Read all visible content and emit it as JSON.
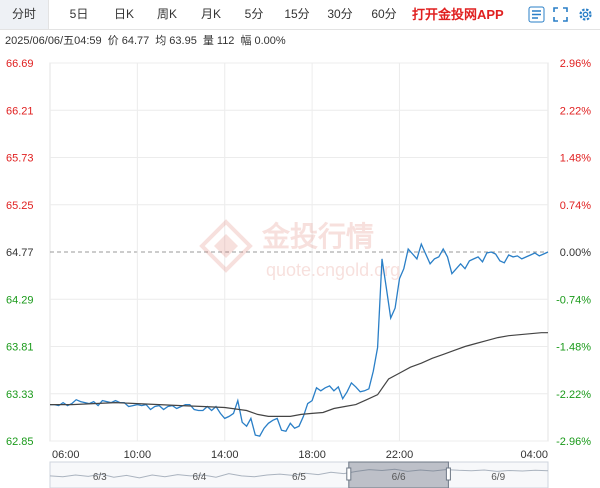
{
  "tabs": [
    {
      "label": "分时",
      "active": true
    },
    {
      "label": "5日",
      "active": false
    },
    {
      "label": "日K",
      "active": false
    },
    {
      "label": "周K",
      "active": false
    },
    {
      "label": "月K",
      "active": false
    },
    {
      "label": "5分",
      "active": false
    },
    {
      "label": "15分",
      "active": false
    },
    {
      "label": "30分",
      "active": false
    },
    {
      "label": "60分",
      "active": false
    }
  ],
  "promo_text": "打开金投网APP",
  "info": {
    "datetime": "2025/06/06/五04:59",
    "price_label": "价",
    "price": "64.77",
    "avg_label": "均",
    "avg": "63.95",
    "vol_label": "量",
    "vol": "112",
    "amp_label": "幅",
    "amp": "0.00%"
  },
  "watermark": {
    "title": "金投行情",
    "url": "quote.cngold.org"
  },
  "colors": {
    "up": "#e02020",
    "down": "#1a9a1a",
    "price_line": "#2a7fc7",
    "avg_line": "#444444",
    "ref_line": "#999999"
  },
  "chart_data": {
    "type": "line",
    "y_ticks_left": [
      "66.69",
      "66.21",
      "65.73",
      "65.25",
      "64.77",
      "64.29",
      "63.81",
      "63.33",
      "62.85"
    ],
    "y_ticks_right": [
      "2.96%",
      "2.22%",
      "1.48%",
      "0.74%",
      "0.00%",
      "-0.74%",
      "-1.48%",
      "-2.22%",
      "-2.96%"
    ],
    "ylim": [
      62.85,
      66.69
    ],
    "reference_price": 64.77,
    "x_ticks": [
      "06:00",
      "10:00",
      "14:00",
      "18:00",
      "22:00",
      "04:00"
    ],
    "series": [
      {
        "name": "价",
        "x": [
          0,
          0.2,
          0.4,
          0.6,
          0.8,
          1,
          1.2,
          1.4,
          1.6,
          1.8,
          2,
          2.2,
          2.4,
          2.6,
          2.8,
          3,
          3.2,
          3.4,
          3.6,
          3.8,
          4,
          4.2,
          4.4,
          4.6,
          4.8,
          5,
          5.2,
          5.4,
          5.6,
          5.8,
          6,
          6.2,
          6.4,
          6.6,
          6.8,
          7,
          7.2,
          7.4,
          7.6,
          7.8,
          8,
          8.2,
          8.4,
          8.6,
          8.8,
          9,
          9.2,
          9.4,
          9.6,
          9.8,
          10,
          10.2,
          10.4,
          10.6,
          10.8,
          11,
          11.2,
          11.4,
          11.6,
          11.8,
          12,
          12.2,
          12.4,
          12.6,
          12.8,
          13,
          13.2,
          13.4,
          13.6,
          13.8,
          14,
          14.2,
          14.4,
          14.6,
          14.8,
          15,
          15.2,
          15.4,
          15.6,
          15.8,
          16,
          16.2,
          16.4,
          16.6,
          16.8,
          17,
          17.2,
          17.4,
          17.6,
          17.8,
          18,
          18.2,
          18.4,
          18.6,
          18.8,
          19,
          19.2,
          19.4,
          19.6,
          19.8,
          20,
          20.2,
          20.4,
          20.6,
          20.8,
          21,
          21.2,
          21.4,
          21.6,
          21.8,
          22,
          22.2,
          22.4,
          22.6,
          22.8
        ],
        "values": [
          63.22,
          63.22,
          63.21,
          63.24,
          63.21,
          63.23,
          63.27,
          63.25,
          63.24,
          63.23,
          63.25,
          63.21,
          63.26,
          63.25,
          63.24,
          63.26,
          63.24,
          63.24,
          63.2,
          63.21,
          63.22,
          63.21,
          63.22,
          63.17,
          63.2,
          63.21,
          63.17,
          63.2,
          63.21,
          63.18,
          63.2,
          63.22,
          63.22,
          63.17,
          63.16,
          63.16,
          63.2,
          63.16,
          63.2,
          63.13,
          63.08,
          63.1,
          63.13,
          63.26,
          63.04,
          63.0,
          63.08,
          62.91,
          62.9,
          62.98,
          63.03,
          63.06,
          63.08,
          62.96,
          62.95,
          63.03,
          62.98,
          63.0,
          63.1,
          63.23,
          63.26,
          63.39,
          63.36,
          63.39,
          63.41,
          63.36,
          63.4,
          63.28,
          63.35,
          63.44,
          63.4,
          63.35,
          63.36,
          63.38,
          63.56,
          63.8,
          64.7,
          64.4,
          64.1,
          64.2,
          64.5,
          64.6,
          64.8,
          64.75,
          64.7,
          64.85,
          64.75,
          64.65,
          64.7,
          64.72,
          64.8,
          64.72,
          64.55,
          64.6,
          64.65,
          64.6,
          64.68,
          64.7,
          64.72,
          64.67,
          64.76,
          64.77,
          64.75,
          64.68,
          64.66,
          64.74,
          64.72,
          64.73,
          64.7,
          64.72,
          64.74,
          64.76,
          64.73,
          64.75,
          64.77
        ]
      },
      {
        "name": "均",
        "x": [
          0,
          1,
          2,
          3,
          4,
          5,
          6,
          7,
          8,
          9,
          9.5,
          10,
          10.5,
          11,
          11.5,
          12,
          12.5,
          13,
          13.5,
          14,
          14.5,
          15,
          15.5,
          16,
          16.5,
          17,
          17.5,
          18,
          18.5,
          19,
          19.5,
          20,
          20.5,
          21,
          21.5,
          22,
          22.5,
          22.8
        ],
        "values": [
          63.22,
          63.22,
          63.23,
          63.24,
          63.23,
          63.22,
          63.21,
          63.2,
          63.19,
          63.16,
          63.12,
          63.1,
          63.1,
          63.1,
          63.12,
          63.13,
          63.14,
          63.18,
          63.2,
          63.22,
          63.27,
          63.32,
          63.48,
          63.54,
          63.6,
          63.64,
          63.69,
          63.73,
          63.77,
          63.81,
          63.84,
          63.87,
          63.9,
          63.92,
          63.93,
          63.94,
          63.95,
          63.95
        ]
      }
    ]
  },
  "navigator": {
    "labels": [
      "6/3",
      "6/4",
      "6/5",
      "6/6",
      "6/9"
    ]
  }
}
